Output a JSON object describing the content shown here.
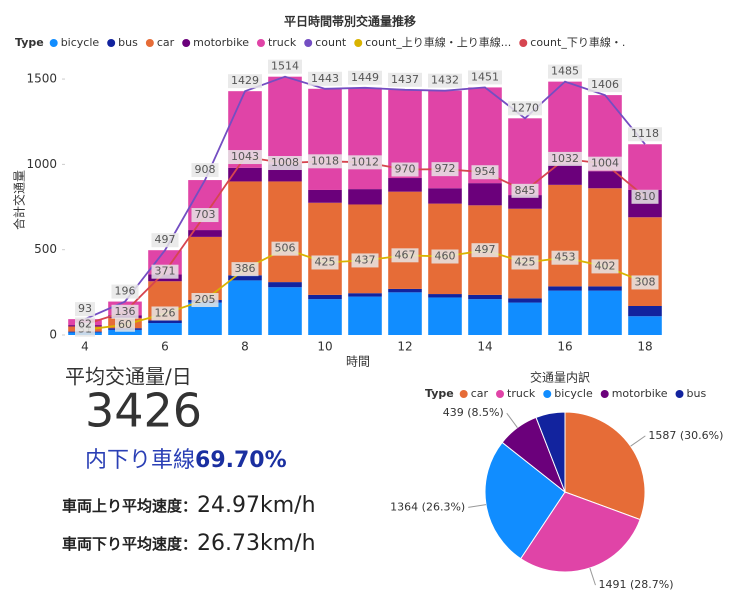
{
  "chart_data": [
    {
      "type": "bar",
      "title": "平日時間帯別交通量推移",
      "legend_title": "Type",
      "x_label": "時間",
      "y_label": "合計交通量",
      "categories": [
        4,
        null,
        6,
        null,
        8,
        null,
        10,
        null,
        12,
        null,
        14,
        null,
        16,
        null,
        18
      ],
      "ylim": [
        0,
        1600
      ],
      "yticks": [
        0,
        500,
        1000,
        1500
      ],
      "stacked": true,
      "series": [
        {
          "name": "bicycle",
          "color": "#118dff",
          "values": [
            15,
            30,
            70,
            190,
            320,
            280,
            210,
            225,
            250,
            220,
            210,
            190,
            260,
            260,
            110
          ]
        },
        {
          "name": "bus",
          "color": "#12239e",
          "values": [
            5,
            10,
            15,
            15,
            30,
            30,
            25,
            20,
            20,
            20,
            25,
            25,
            25,
            25,
            60
          ]
        },
        {
          "name": "car",
          "color": "#e66c37",
          "values": [
            30,
            60,
            230,
            370,
            550,
            590,
            540,
            520,
            570,
            530,
            525,
            525,
            595,
            575,
            520
          ]
        },
        {
          "name": "motorbike",
          "color": "#6b007b",
          "values": [
            8,
            16,
            40,
            40,
            80,
            100,
            75,
            90,
            80,
            90,
            130,
            80,
            120,
            100,
            160
          ]
        },
        {
          "name": "truck",
          "color": "#e044a7",
          "values": [
            35,
            80,
            142,
            293,
            449,
            514,
            593,
            594,
            517,
            572,
            561,
            450,
            485,
            446,
            268
          ]
        },
        {
          "name": "count",
          "type": "line",
          "color": "#744ec2",
          "values": [
            93,
            196,
            497,
            908,
            1429,
            1514,
            1443,
            1449,
            1437,
            1432,
            1451,
            1270,
            1485,
            1406,
            1118
          ]
        },
        {
          "name": "count_上り車線・上り車線...",
          "type": "line",
          "color": "#d9b300",
          "values": [
            31,
            60,
            126,
            205,
            386,
            506,
            425,
            437,
            467,
            460,
            497,
            425,
            453,
            402,
            308
          ]
        },
        {
          "name": "count_下り車線・.",
          "type": "line",
          "color": "#d64550",
          "values": [
            62,
            136,
            371,
            703,
            1043,
            1008,
            1018,
            1012,
            970,
            972,
            954,
            845,
            1032,
            1004,
            810
          ]
        }
      ]
    },
    {
      "type": "pie",
      "title": "交通量内訳",
      "legend_title": "Type",
      "categories": [
        "car",
        "truck",
        "bicycle",
        "motorbike",
        "bus"
      ],
      "colors": [
        "#e66c37",
        "#e044a7",
        "#118dff",
        "#6b007b",
        "#12239e"
      ],
      "values": [
        1587,
        1491,
        1364,
        439,
        306
      ],
      "value_labels": [
        "1587 (30.6%)",
        "1491 (28.7%)",
        "1364 (26.3%)",
        "439 (8.5%)",
        null
      ]
    }
  ],
  "kpis": {
    "avg_title": "平均交通量/日",
    "avg_value": "3426",
    "down_label": "内下り車線",
    "down_share": "69.70%",
    "up_speed_label": "車両上り平均速度：",
    "up_speed": "24.97km/h",
    "down_speed_label": "車両下り平均速度：",
    "down_speed": "26.73km/h"
  }
}
